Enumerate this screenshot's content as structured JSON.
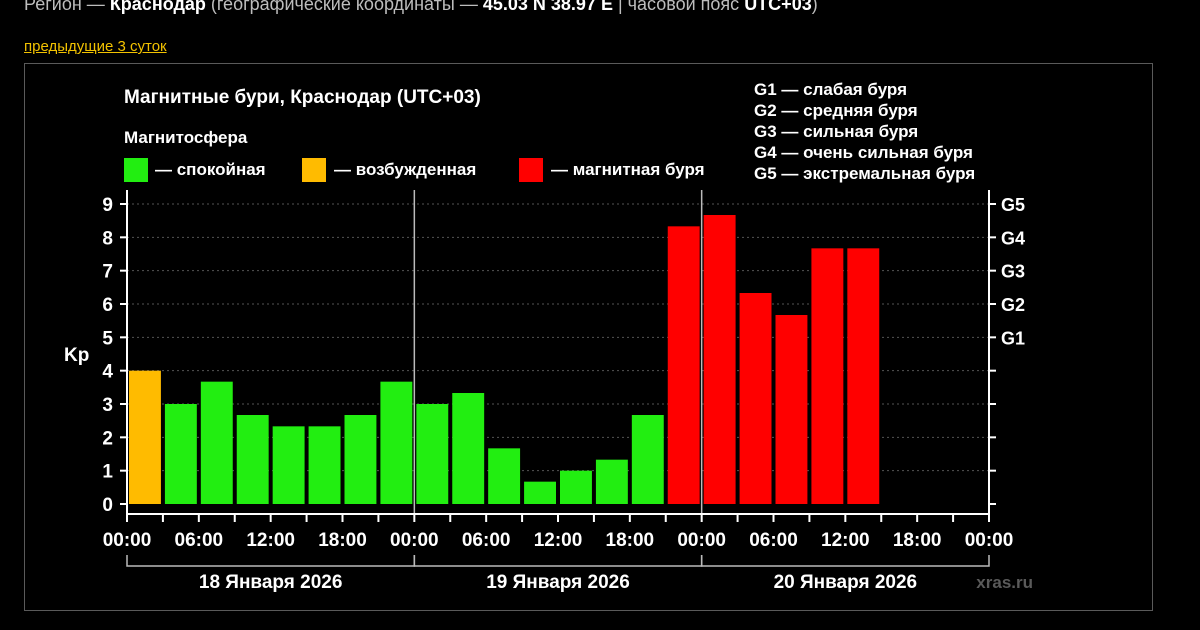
{
  "header": {
    "region_label": "Регион — ",
    "city": "Краснодар",
    "coords_label": " (географические координаты — ",
    "coords": "45.03 N 38.97 E",
    "tz_label": " | часовой пояс ",
    "tz": "UTC+03",
    "tz_close": ")"
  },
  "nav": {
    "prev_link": "предыдущие 3 суток"
  },
  "colors": {
    "quiet": "#22ee11",
    "excited": "#ffbb00",
    "storm": "#ff0000"
  },
  "chart_data": {
    "type": "bar",
    "title": "Магнитные бури, Краснодар (UTC+03)",
    "ylabel": "Kp",
    "ylim": [
      0,
      9
    ],
    "yticks": [
      "0",
      "1",
      "2",
      "3",
      "4",
      "5",
      "6",
      "7",
      "8",
      "9"
    ],
    "g_scale": [
      {
        "label": "G1",
        "kp": 5
      },
      {
        "label": "G2",
        "kp": 6
      },
      {
        "label": "G3",
        "kp": 7
      },
      {
        "label": "G4",
        "kp": 8
      },
      {
        "label": "G5",
        "kp": 9
      }
    ],
    "legend": {
      "heading": "Магнитосфера",
      "items": [
        {
          "label": "— спокойная",
          "status": "quiet"
        },
        {
          "label": "— возбужденная",
          "status": "excited"
        },
        {
          "label": "— магнитная буря",
          "status": "storm"
        }
      ]
    },
    "g_legend": [
      "G1 — слабая буря",
      "G2 — средняя буря",
      "G3 — сильная буря",
      "G4 — очень сильная буря",
      "G5 — экстремальная буря"
    ],
    "xticks": [
      "00:00",
      "06:00",
      "12:00",
      "18:00",
      "00:00",
      "06:00",
      "12:00",
      "18:00",
      "00:00",
      "06:00",
      "12:00",
      "18:00",
      "00:00"
    ],
    "days": [
      "18 Января 2026",
      "19 Января 2026",
      "20 Января 2026"
    ],
    "slots_total": 24,
    "bars": [
      {
        "value": 4.0,
        "status": "excited"
      },
      {
        "value": 3.0,
        "status": "quiet"
      },
      {
        "value": 3.67,
        "status": "quiet"
      },
      {
        "value": 2.67,
        "status": "quiet"
      },
      {
        "value": 2.33,
        "status": "quiet"
      },
      {
        "value": 2.33,
        "status": "quiet"
      },
      {
        "value": 2.67,
        "status": "quiet"
      },
      {
        "value": 3.67,
        "status": "quiet"
      },
      {
        "value": 3.0,
        "status": "quiet"
      },
      {
        "value": 3.33,
        "status": "quiet"
      },
      {
        "value": 1.67,
        "status": "quiet"
      },
      {
        "value": 0.67,
        "status": "quiet"
      },
      {
        "value": 1.0,
        "status": "quiet"
      },
      {
        "value": 1.33,
        "status": "quiet"
      },
      {
        "value": 2.67,
        "status": "quiet"
      },
      {
        "value": 8.33,
        "status": "storm"
      },
      {
        "value": 8.67,
        "status": "storm"
      },
      {
        "value": 6.33,
        "status": "storm"
      },
      {
        "value": 5.67,
        "status": "storm"
      },
      {
        "value": 7.67,
        "status": "storm"
      },
      {
        "value": 7.67,
        "status": "storm"
      }
    ],
    "watermark": "xras.ru"
  }
}
